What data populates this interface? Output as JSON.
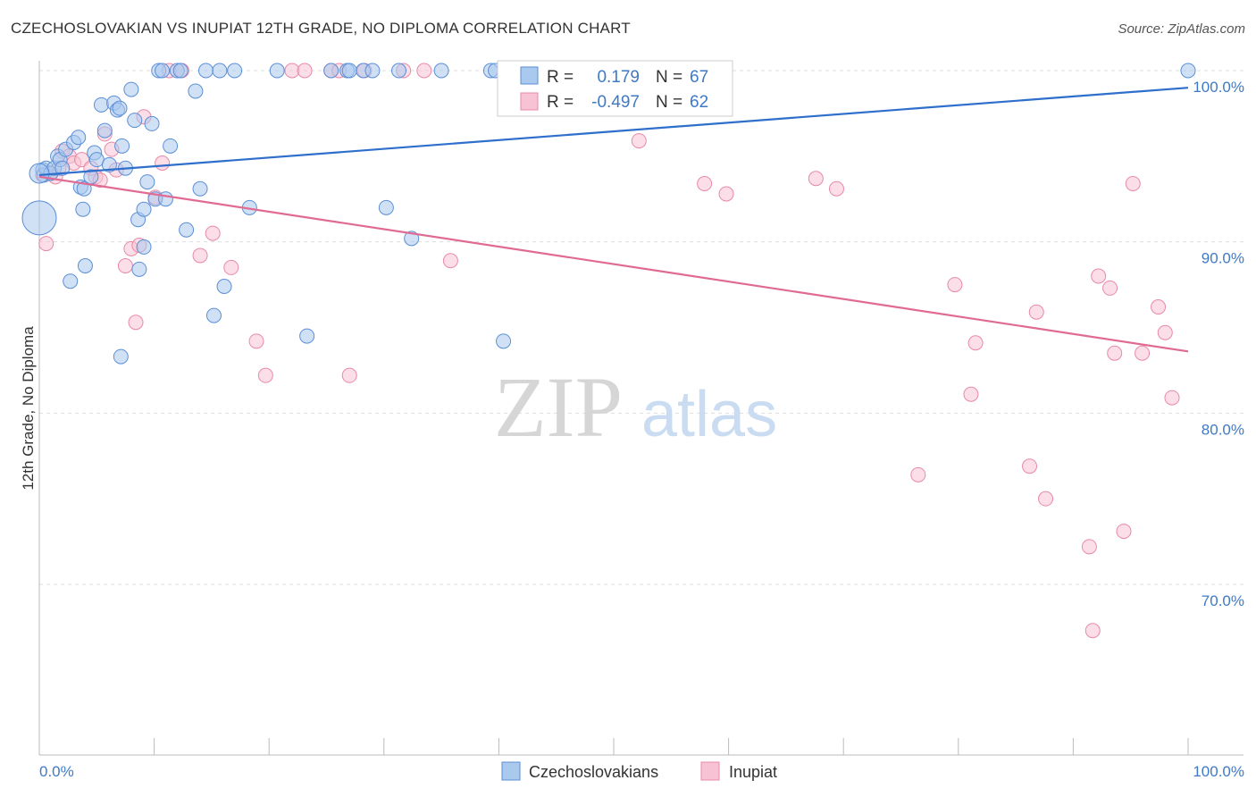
{
  "title": "CZECHOSLOVAKIAN VS INUPIAT 12TH GRADE, NO DIPLOMA CORRELATION CHART",
  "source": "Source: ZipAtlas.com",
  "watermark": {
    "zip": "ZIP",
    "atlas": "atlas"
  },
  "colors": {
    "blue_fill": "#aac9ee",
    "blue_stroke": "#5b8fd6",
    "blue_line": "#2f6fcc",
    "pink_fill": "#f7c2d3",
    "pink_stroke": "#e88aa8",
    "pink_line": "#e06a93",
    "axis_text": "#3f79c6",
    "grid": "#dddddd"
  },
  "chart_data": {
    "type": "scatter",
    "title": "CZECHOSLOVAKIAN VS INUPIAT 12TH GRADE, NO DIPLOMA CORRELATION CHART",
    "xlabel": "",
    "ylabel": "12th Grade, No Diploma",
    "xlim": [
      0,
      100
    ],
    "ylim": [
      60,
      100
    ],
    "x_tick_labels": [
      "0.0%",
      "100.0%"
    ],
    "y_ticks": [
      70,
      80,
      90,
      100
    ],
    "y_tick_labels": [
      "70.0%",
      "80.0%",
      "90.0%",
      "100.0%"
    ],
    "grid": true,
    "legend_top": [
      {
        "r_label": "R =",
        "r_value": "0.179",
        "n_label": "N =",
        "n_value": "67"
      },
      {
        "r_label": "R =",
        "r_value": "-0.497",
        "n_label": "N =",
        "n_value": "62"
      }
    ],
    "series": [
      {
        "name": "Czechoslovakians",
        "color": "#aac9ee",
        "trend": {
          "x": [
            0,
            100
          ],
          "y": [
            93.9,
            99.0
          ]
        },
        "points": [
          [
            0.3,
            94.2
          ],
          [
            0.4,
            93.9
          ],
          [
            0.6,
            94.3
          ],
          [
            1.0,
            94.0
          ],
          [
            1.3,
            94.3
          ],
          [
            1.6,
            95.0
          ],
          [
            1.8,
            94.8
          ],
          [
            2.0,
            94.3
          ],
          [
            2.3,
            95.4
          ],
          [
            3.0,
            95.8
          ],
          [
            3.4,
            96.1
          ],
          [
            3.6,
            93.2
          ],
          [
            3.8,
            91.9
          ],
          [
            3.9,
            93.1
          ],
          [
            4.5,
            93.8
          ],
          [
            4.8,
            95.2
          ],
          [
            5.0,
            94.8
          ],
          [
            5.4,
            98.0
          ],
          [
            5.7,
            96.5
          ],
          [
            6.1,
            94.5
          ],
          [
            6.5,
            98.1
          ],
          [
            6.8,
            97.7
          ],
          [
            7.0,
            97.8
          ],
          [
            7.2,
            95.6
          ],
          [
            7.5,
            94.3
          ],
          [
            8.0,
            98.9
          ],
          [
            8.3,
            97.1
          ],
          [
            8.6,
            91.3
          ],
          [
            8.7,
            88.4
          ],
          [
            9.1,
            89.7
          ],
          [
            9.4,
            93.5
          ],
          [
            9.8,
            96.9
          ],
          [
            10.1,
            92.5
          ],
          [
            10.4,
            100.0
          ],
          [
            10.7,
            100.0
          ],
          [
            11.0,
            92.5
          ],
          [
            11.4,
            95.6
          ],
          [
            12.0,
            100.0
          ],
          [
            12.3,
            100.0
          ],
          [
            12.8,
            90.7
          ],
          [
            13.6,
            98.8
          ],
          [
            14.0,
            93.1
          ],
          [
            14.5,
            100.0
          ],
          [
            15.2,
            85.7
          ],
          [
            15.7,
            100.0
          ],
          [
            16.1,
            87.4
          ],
          [
            17.0,
            100.0
          ],
          [
            18.3,
            92.0
          ],
          [
            20.7,
            100.0
          ],
          [
            23.3,
            84.5
          ],
          [
            25.4,
            100.0
          ],
          [
            26.8,
            100.0
          ],
          [
            27.0,
            100.0
          ],
          [
            28.2,
            100.0
          ],
          [
            29.0,
            100.0
          ],
          [
            30.2,
            92.0
          ],
          [
            31.3,
            100.0
          ],
          [
            32.4,
            90.2
          ],
          [
            35.0,
            100.0
          ],
          [
            39.3,
            100.0
          ],
          [
            39.7,
            100.0
          ],
          [
            7.1,
            83.3
          ],
          [
            2.7,
            87.7
          ],
          [
            4.0,
            88.6
          ],
          [
            9.1,
            91.9
          ],
          [
            40.4,
            84.2
          ],
          [
            100.0,
            100.0
          ]
        ]
      },
      {
        "name": "Inupiat",
        "color": "#f7c2d3",
        "trend": {
          "x": [
            0,
            100
          ],
          "y": [
            93.8,
            83.6
          ]
        },
        "points": [
          [
            0.3,
            93.9
          ],
          [
            0.6,
            89.9
          ],
          [
            1.0,
            94.0
          ],
          [
            1.4,
            93.8
          ],
          [
            1.7,
            94.3
          ],
          [
            2.0,
            95.3
          ],
          [
            2.6,
            95.0
          ],
          [
            3.0,
            94.6
          ],
          [
            3.7,
            94.8
          ],
          [
            4.5,
            94.3
          ],
          [
            4.9,
            93.8
          ],
          [
            5.3,
            93.6
          ],
          [
            5.7,
            96.3
          ],
          [
            6.3,
            95.4
          ],
          [
            6.7,
            94.2
          ],
          [
            7.5,
            88.6
          ],
          [
            8.0,
            89.6
          ],
          [
            8.4,
            85.3
          ],
          [
            8.7,
            89.8
          ],
          [
            9.1,
            97.3
          ],
          [
            10.1,
            92.6
          ],
          [
            10.7,
            94.6
          ],
          [
            11.3,
            100.0
          ],
          [
            12.4,
            100.0
          ],
          [
            14.0,
            89.2
          ],
          [
            15.1,
            90.5
          ],
          [
            16.7,
            88.5
          ],
          [
            18.9,
            84.2
          ],
          [
            19.7,
            82.2
          ],
          [
            22.0,
            100.0
          ],
          [
            23.1,
            100.0
          ],
          [
            25.4,
            100.0
          ],
          [
            26.1,
            100.0
          ],
          [
            27.0,
            82.2
          ],
          [
            28.3,
            100.0
          ],
          [
            31.7,
            100.0
          ],
          [
            33.5,
            100.0
          ],
          [
            35.8,
            88.9
          ],
          [
            45.6,
            100.0
          ],
          [
            52.2,
            95.9
          ],
          [
            57.9,
            93.4
          ],
          [
            59.8,
            92.8
          ],
          [
            67.6,
            93.7
          ],
          [
            69.4,
            93.1
          ],
          [
            76.5,
            76.4
          ],
          [
            79.7,
            87.5
          ],
          [
            81.1,
            81.1
          ],
          [
            81.5,
            84.1
          ],
          [
            86.2,
            76.9
          ],
          [
            86.8,
            85.9
          ],
          [
            87.6,
            75.0
          ],
          [
            91.4,
            72.2
          ],
          [
            91.7,
            67.3
          ],
          [
            92.2,
            88.0
          ],
          [
            93.2,
            87.3
          ],
          [
            93.6,
            83.5
          ],
          [
            94.4,
            73.1
          ],
          [
            95.2,
            93.4
          ],
          [
            96.0,
            83.5
          ],
          [
            97.4,
            86.2
          ],
          [
            98.0,
            84.7
          ],
          [
            98.6,
            80.9
          ]
        ]
      }
    ]
  }
}
